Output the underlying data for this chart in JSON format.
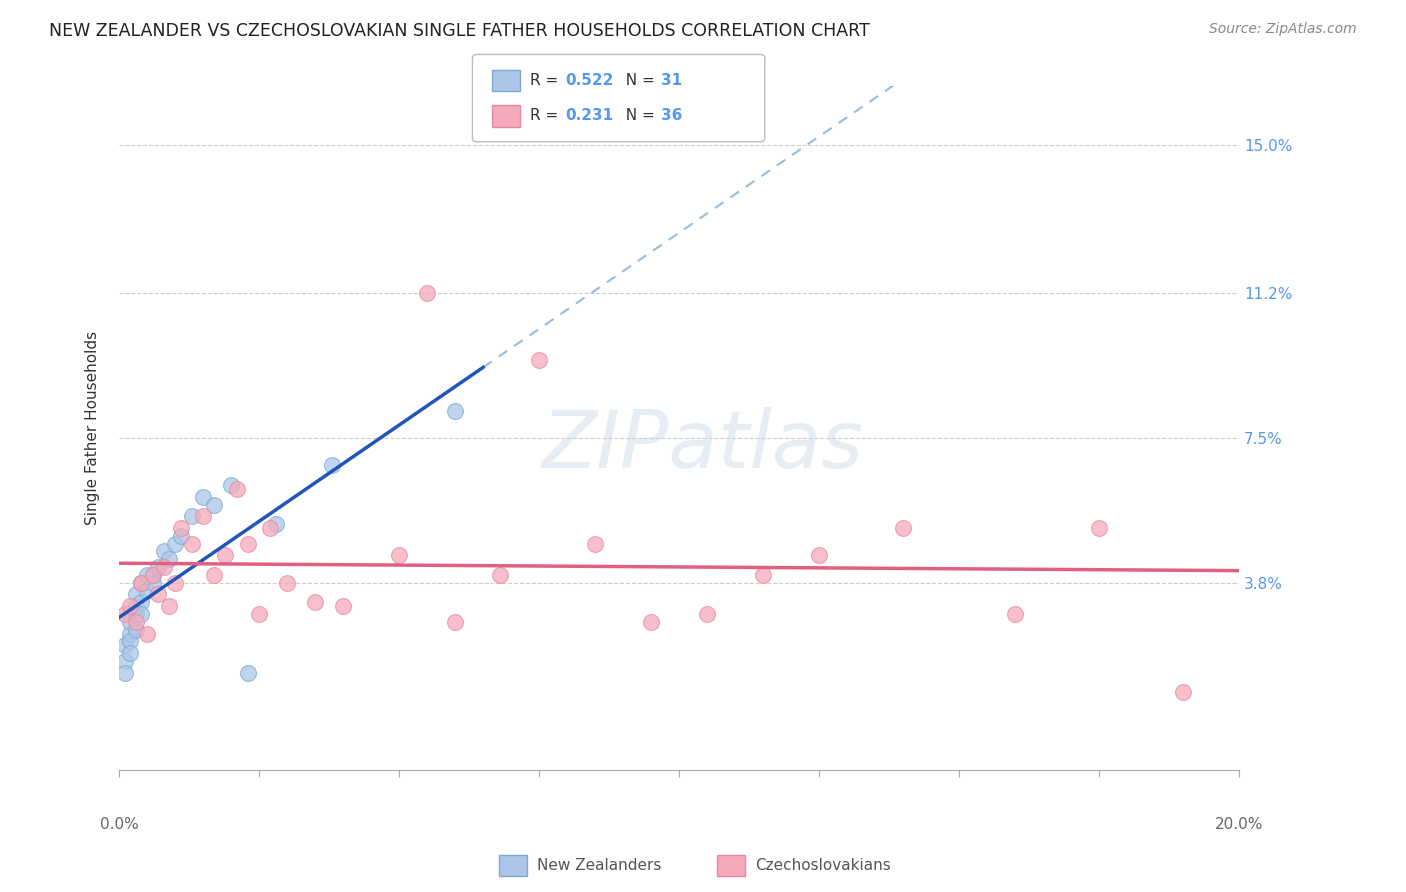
{
  "title": "NEW ZEALANDER VS CZECHOSLOVAKIAN SINGLE FATHER HOUSEHOLDS CORRELATION CHART",
  "source": "Source: ZipAtlas.com",
  "ylabel": "Single Father Households",
  "ytick_labels": [
    "15.0%",
    "11.2%",
    "7.5%",
    "3.8%"
  ],
  "ytick_values": [
    0.15,
    0.112,
    0.075,
    0.038
  ],
  "xmin": 0.0,
  "xmax": 0.2,
  "ymin": -0.01,
  "ymax": 0.165,
  "legend1_R": "0.522",
  "legend1_N": "31",
  "legend2_R": "0.231",
  "legend2_N": "36",
  "color_nz_fill": "#adc6e8",
  "color_nz_edge": "#7aaad0",
  "color_nz_line": "#2255bb",
  "color_nz_dash": "#99bbdd",
  "color_cz_fill": "#f5aabb",
  "color_cz_edge": "#e888a0",
  "color_cz_line": "#e06080",
  "color_text": "#333333",
  "color_axis": "#aaaaaa",
  "color_grid": "#cccccc",
  "color_ytick": "#5599ee",
  "background_color": "#ffffff",
  "nz_x": [
    0.001,
    0.001,
    0.001,
    0.002,
    0.002,
    0.002,
    0.002,
    0.003,
    0.003,
    0.003,
    0.003,
    0.004,
    0.004,
    0.004,
    0.005,
    0.005,
    0.006,
    0.006,
    0.007,
    0.008,
    0.009,
    0.01,
    0.011,
    0.013,
    0.015,
    0.017,
    0.02,
    0.023,
    0.028,
    0.038,
    0.06
  ],
  "nz_y": [
    0.018,
    0.022,
    0.015,
    0.025,
    0.023,
    0.02,
    0.028,
    0.03,
    0.032,
    0.026,
    0.035,
    0.033,
    0.03,
    0.038,
    0.036,
    0.04,
    0.04,
    0.038,
    0.042,
    0.046,
    0.044,
    0.048,
    0.05,
    0.055,
    0.06,
    0.058,
    0.063,
    0.015,
    0.053,
    0.068,
    0.082
  ],
  "cz_x": [
    0.001,
    0.002,
    0.003,
    0.004,
    0.005,
    0.006,
    0.007,
    0.008,
    0.009,
    0.01,
    0.011,
    0.013,
    0.015,
    0.017,
    0.019,
    0.021,
    0.023,
    0.025,
    0.027,
    0.03,
    0.035,
    0.04,
    0.05,
    0.055,
    0.06,
    0.068,
    0.075,
    0.085,
    0.095,
    0.105,
    0.115,
    0.125,
    0.14,
    0.16,
    0.175,
    0.19
  ],
  "cz_y": [
    0.03,
    0.032,
    0.028,
    0.038,
    0.025,
    0.04,
    0.035,
    0.042,
    0.032,
    0.038,
    0.052,
    0.048,
    0.055,
    0.04,
    0.045,
    0.062,
    0.048,
    0.03,
    0.052,
    0.038,
    0.033,
    0.032,
    0.045,
    0.112,
    0.028,
    0.04,
    0.095,
    0.048,
    0.028,
    0.03,
    0.04,
    0.045,
    0.052,
    0.03,
    0.052,
    0.01
  ],
  "nz_line_xstart": 0.0,
  "nz_line_xend": 0.065,
  "nz_dash_xstart": 0.065,
  "nz_dash_xend": 0.2,
  "cz_line_xstart": 0.0,
  "cz_line_xend": 0.2
}
